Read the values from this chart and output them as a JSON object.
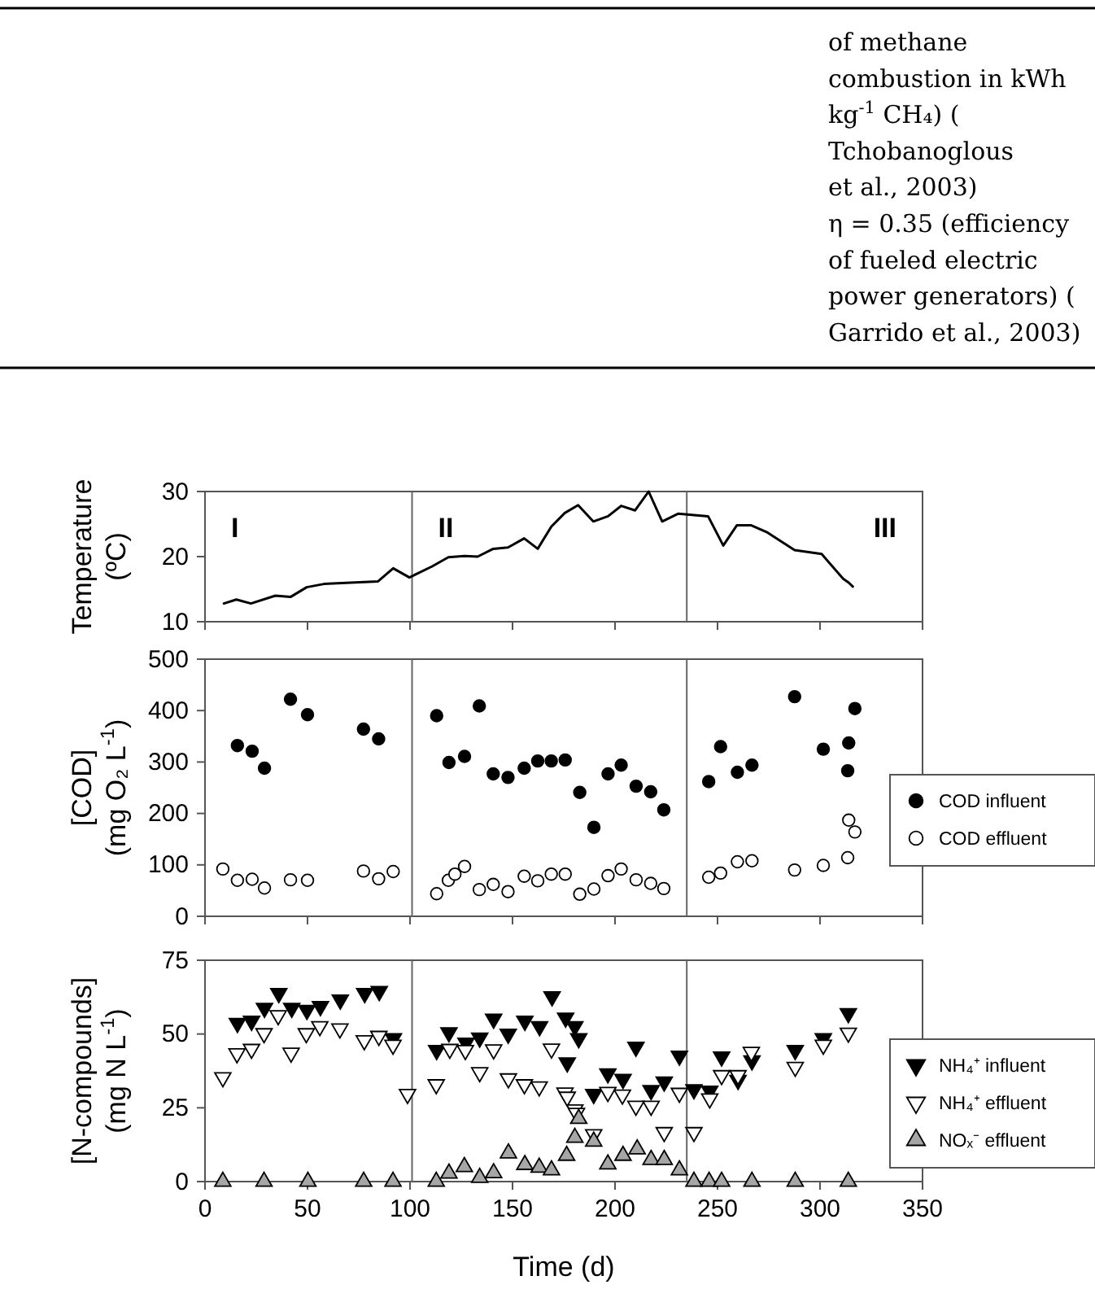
{
  "chart_data": [
    {
      "type": "other",
      "annotations": [
        "of methane",
        "combustion in kWh",
        "kg$^{-1}$ CH₄) (",
        "Tchobanoglous",
        "et al., 2003)",
        "η = 0.35 (efficiency",
        "of fueled electric",
        "power generators) (",
        "Garrido et al., 2003)"
      ]
    },
    {
      "type": "line",
      "ylabel": "Temperature\n(ºC)",
      "xlim": [
        0,
        350
      ],
      "xticks": [
        0,
        50,
        100,
        150,
        200,
        250,
        300,
        350
      ],
      "ylim": [
        10,
        30
      ],
      "yticks": [
        10,
        20,
        30
      ],
      "tick_labels": "y",
      "marker": "none",
      "line_style": "solid",
      "ref_lines": [
        {
          "axis": "x",
          "value": 101,
          "color": "#666666"
        },
        {
          "axis": "x",
          "value": 235,
          "color": "#666666"
        }
      ],
      "annotations": [
        "I",
        "II",
        "III"
      ],
      "series": [
        {
          "color": "#000000",
          "x": [
            9.2,
            15.3,
            22.4,
            34.3,
            41.7,
            49.6,
            58,
            71,
            84.4,
            91.8,
            99.7,
            110.8,
            118.7,
            126.6,
            133,
            140.6,
            147.8,
            155.7,
            162.3,
            168.9,
            175.5,
            182,
            189.4,
            196.6,
            203,
            209.8,
            216.4,
            223,
            230.9,
            237.5,
            245.4,
            252.8,
            259.4,
            266.5,
            274.4,
            287.6,
            300.8,
            311.3,
            314,
            316
          ],
          "values": [
            12.8,
            13.4,
            12.8,
            14.0,
            13.8,
            15.3,
            15.8,
            16.0,
            16.2,
            18.2,
            16.8,
            18.5,
            19.9,
            20.1,
            20.0,
            21.2,
            21.4,
            22.8,
            21.2,
            24.6,
            26.7,
            27.9,
            25.4,
            26.2,
            27.8,
            27.1,
            30,
            25.4,
            26.6,
            26.4,
            26.2,
            21.7,
            24.8,
            24.8,
            23.7,
            21.0,
            20.4,
            16.6,
            16.0,
            15.4
          ]
        }
      ]
    },
    {
      "type": "scatter",
      "ylabel": "[COD]\n(mg O₂ L$^{-1}$)",
      "xlim": [
        0,
        350
      ],
      "xticks": [
        0,
        50,
        100,
        150,
        200,
        250,
        300,
        350
      ],
      "ylim": [
        0,
        500
      ],
      "yticks": [
        0,
        100,
        200,
        300,
        400,
        500
      ],
      "tick_labels": "y",
      "legend": "right",
      "marker": "circle",
      "ref_lines": [
        {
          "axis": "x",
          "value": 101,
          "color": "#666666"
        },
        {
          "axis": "x",
          "value": 235,
          "color": "#666666"
        }
      ],
      "series": [
        {
          "name": "COD influent",
          "color": "#000000",
          "x": [
            15.8,
            23,
            29,
            41.7,
            50,
            77.3,
            84.7,
            113,
            119,
            126.6,
            133.8,
            140.6,
            147.8,
            155.7,
            162.3,
            168.9,
            175.7,
            182.8,
            189.7,
            196.6,
            203,
            210.3,
            217.4,
            223.8,
            245.7,
            251.5,
            259.7,
            266.8,
            287.6,
            301.6,
            313.5,
            314,
            317
          ],
          "values": [
            332,
            321,
            288,
            422,
            392,
            364,
            345,
            390,
            299,
            311,
            409,
            277,
            270,
            288,
            302,
            302,
            304,
            241,
            173,
            277,
            294,
            253,
            242,
            207,
            262,
            330,
            280,
            294,
            427,
            325,
            283,
            337,
            404
          ]
        },
        {
          "name": "COD effluent",
          "color": "#ffffff",
          "x": [
            8.7,
            15.8,
            23,
            29,
            41.7,
            50,
            77.3,
            84.7,
            91.8,
            113,
            118.7,
            121.9,
            126.6,
            133.8,
            140.6,
            147.8,
            155.7,
            162.3,
            168.9,
            175.7,
            182.8,
            189.7,
            196.6,
            203,
            210.3,
            217.4,
            223.8,
            245.7,
            251.5,
            259.7,
            266.8,
            287.6,
            301.6,
            313.5,
            314,
            317
          ],
          "values": [
            92,
            70,
            72,
            55,
            71,
            70,
            88,
            73,
            87,
            44,
            70,
            82,
            97,
            52,
            62,
            48,
            78,
            69,
            82,
            82,
            43,
            53,
            79,
            92,
            71,
            64,
            54,
            76,
            84,
            106,
            108,
            90,
            99,
            114,
            187,
            164
          ]
        }
      ]
    },
    {
      "type": "scatter",
      "ylabel": "[N-compounds]\n(mg N L$^{-1}$)",
      "xlabel": "Time (d)",
      "xlim": [
        0,
        350
      ],
      "xticks": [
        0,
        50,
        100,
        150,
        200,
        250,
        300,
        350
      ],
      "ylim": [
        0,
        75
      ],
      "yticks": [
        0,
        25,
        50,
        75
      ],
      "legend": "right",
      "ref_lines": [
        {
          "axis": "x",
          "value": 101,
          "color": "#666666"
        },
        {
          "axis": "x",
          "value": 235,
          "color": "#666666"
        }
      ],
      "series": [
        {
          "name": "NH₄⁺ influent",
          "color": "#000000",
          "marker": "triangle-down",
          "x": [
            15.8,
            22.7,
            29,
            36,
            42.3,
            49.7,
            56.3,
            66,
            77.9,
            85,
            91.9,
            113,
            119,
            127.3,
            134,
            140.8,
            147.9,
            156,
            163.2,
            169.3,
            175.9,
            176.7,
            180.4,
            182.3,
            189.6,
            196.5,
            203.9,
            210.2,
            217.6,
            224,
            231.4,
            238.5,
            246.2,
            252,
            260,
            266.8,
            287.9,
            301.6,
            313.8
          ],
          "values": [
            53.7,
            54.4,
            58.8,
            63.8,
            58.8,
            58.1,
            59.4,
            61.6,
            63.8,
            64.5,
            48.5,
            44.5,
            50.5,
            47,
            48.7,
            55.1,
            50,
            54.4,
            52.6,
            62.7,
            55.5,
            40.3,
            52.6,
            48.5,
            29.6,
            36.6,
            34.7,
            45.6,
            30.9,
            33.8,
            42.6,
            31.2,
            30.7,
            42.3,
            34.4,
            41,
            44.5,
            48.5,
            57
          ]
        },
        {
          "name": "NH₄⁺ effluent",
          "color": "#ffffff",
          "marker": "triangle-down",
          "x": [
            8.7,
            15.6,
            22.7,
            28.8,
            35.7,
            42,
            49.4,
            56,
            65.8,
            77.7,
            84.8,
            91.7,
            98.8,
            112.8,
            119.4,
            127,
            134,
            140.8,
            148,
            155.8,
            163,
            169,
            175.6,
            176.7,
            180.4,
            181.2,
            189.6,
            196.5,
            203.6,
            210.2,
            217.6,
            224,
            231.4,
            238.5,
            246.2,
            252,
            260,
            266.5,
            287.9,
            301.6,
            313.8
          ],
          "values": [
            35.3,
            43.4,
            44.9,
            50.2,
            56.3,
            43.6,
            50.2,
            52.6,
            51.8,
            47.8,
            49.3,
            46.3,
            29.6,
            32.9,
            44.9,
            44.5,
            37,
            44.7,
            34.9,
            32.9,
            32.2,
            45,
            30.1,
            28.7,
            24.4,
            23.2,
            16,
            30.3,
            29.4,
            25.6,
            25.6,
            16.7,
            30,
            16.7,
            28.1,
            36,
            36,
            43.9,
            38.8,
            46.3,
            50.4
          ]
        },
        {
          "name": "NOₓ⁻ effluent",
          "color": "#a6a6a6",
          "marker": "triangle",
          "x": [
            8.7,
            28.8,
            50.2,
            77.4,
            91.7,
            112.8,
            119,
            126.5,
            134,
            140.8,
            148,
            156,
            163,
            169,
            176.4,
            180.4,
            182.3,
            189.6,
            196.5,
            203.9,
            210.8,
            217.6,
            224,
            231.4,
            238.5,
            245.9,
            252,
            266.8,
            287.9,
            313.8
          ],
          "values": [
            0,
            0,
            0,
            0,
            0,
            0,
            2.8,
            5,
            1.3,
            2.9,
            9.6,
            5.7,
            4.8,
            3.9,
            8.8,
            14.9,
            21.3,
            13.6,
            5.9,
            8.8,
            11,
            7.4,
            7.4,
            3.9,
            0,
            0,
            0,
            0,
            0,
            0
          ]
        }
      ]
    }
  ]
}
